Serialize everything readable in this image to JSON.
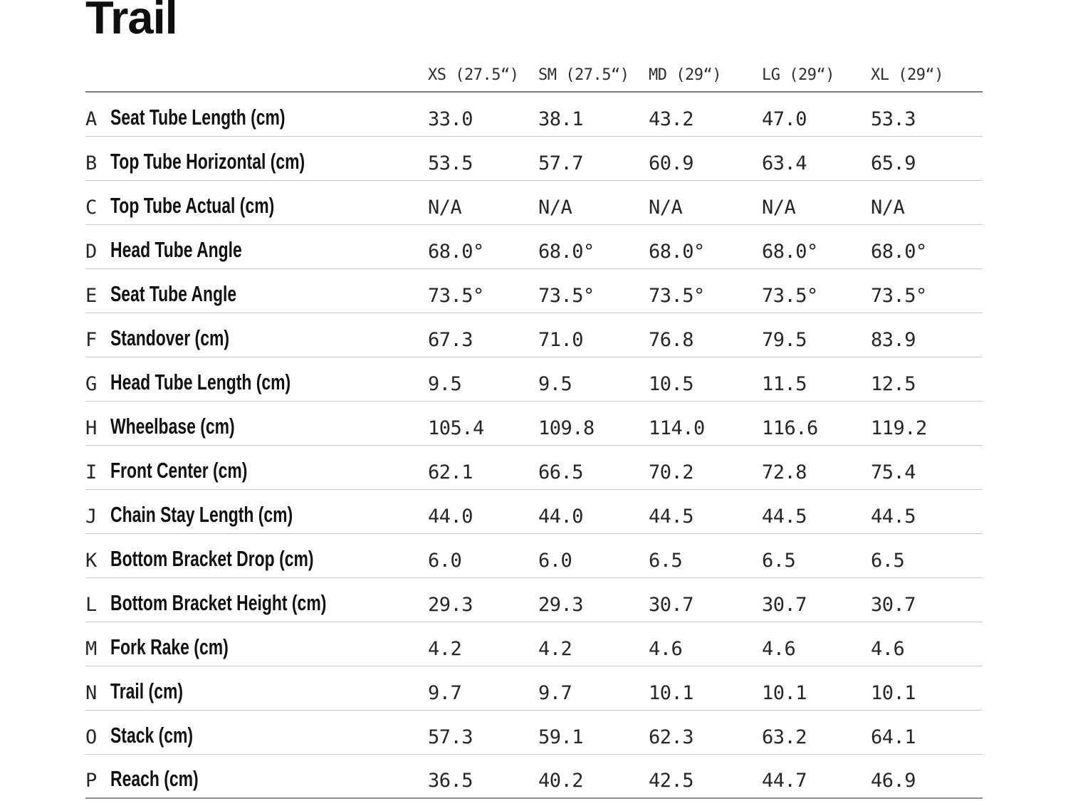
{
  "title": "Trail",
  "colors": {
    "header_rule": "#7a7a7a",
    "row_rule": "#c9c9c9",
    "bottom_rule": "#8f8f8f",
    "label_text": "#111111",
    "value_text": "#262626"
  },
  "table": {
    "size_headers": [
      "XS (27.5“)",
      "SM (27.5“)",
      "MD (29“)",
      "LG (29“)",
      "XL (29“)"
    ],
    "rows": [
      {
        "letter": "A",
        "label": "Seat Tube Length (cm)",
        "values": [
          "33.0",
          "38.1",
          "43.2",
          "47.0",
          "53.3"
        ]
      },
      {
        "letter": "B",
        "label": "Top Tube Horizontal (cm)",
        "values": [
          "53.5",
          "57.7",
          "60.9",
          "63.4",
          "65.9"
        ]
      },
      {
        "letter": "C",
        "label": "Top Tube Actual (cm)",
        "values": [
          "N/A",
          "N/A",
          "N/A",
          "N/A",
          "N/A"
        ]
      },
      {
        "letter": "D",
        "label": "Head Tube Angle",
        "values": [
          "68.0°",
          "68.0°",
          "68.0°",
          "68.0°",
          "68.0°"
        ]
      },
      {
        "letter": "E",
        "label": "Seat Tube Angle",
        "values": [
          "73.5°",
          "73.5°",
          "73.5°",
          "73.5°",
          "73.5°"
        ]
      },
      {
        "letter": "F",
        "label": "Standover (cm)",
        "values": [
          "67.3",
          "71.0",
          "76.8",
          "79.5",
          "83.9"
        ]
      },
      {
        "letter": "G",
        "label": "Head Tube Length (cm)",
        "values": [
          "9.5",
          "9.5",
          "10.5",
          "11.5",
          "12.5"
        ]
      },
      {
        "letter": "H",
        "label": "Wheelbase (cm)",
        "values": [
          "105.4",
          "109.8",
          "114.0",
          "116.6",
          "119.2"
        ]
      },
      {
        "letter": "I",
        "label": "Front Center (cm)",
        "values": [
          "62.1",
          "66.5",
          "70.2",
          "72.8",
          "75.4"
        ]
      },
      {
        "letter": "J",
        "label": "Chain Stay Length (cm)",
        "values": [
          "44.0",
          "44.0",
          "44.5",
          "44.5",
          "44.5"
        ]
      },
      {
        "letter": "K",
        "label": "Bottom Bracket Drop (cm)",
        "values": [
          "6.0",
          "6.0",
          "6.5",
          "6.5",
          "6.5"
        ]
      },
      {
        "letter": "L",
        "label": "Bottom Bracket Height (cm)",
        "values": [
          "29.3",
          "29.3",
          "30.7",
          "30.7",
          "30.7"
        ]
      },
      {
        "letter": "M",
        "label": "Fork Rake (cm)",
        "values": [
          "4.2",
          "4.2",
          "4.6",
          "4.6",
          "4.6"
        ]
      },
      {
        "letter": "N",
        "label": "Trail (cm)",
        "values": [
          "9.7",
          "9.7",
          "10.1",
          "10.1",
          "10.1"
        ]
      },
      {
        "letter": "O",
        "label": "Stack (cm)",
        "values": [
          "57.3",
          "59.1",
          "62.3",
          "63.2",
          "64.1"
        ]
      },
      {
        "letter": "P",
        "label": "Reach (cm)",
        "values": [
          "36.5",
          "40.2",
          "42.5",
          "44.7",
          "46.9"
        ]
      }
    ]
  }
}
